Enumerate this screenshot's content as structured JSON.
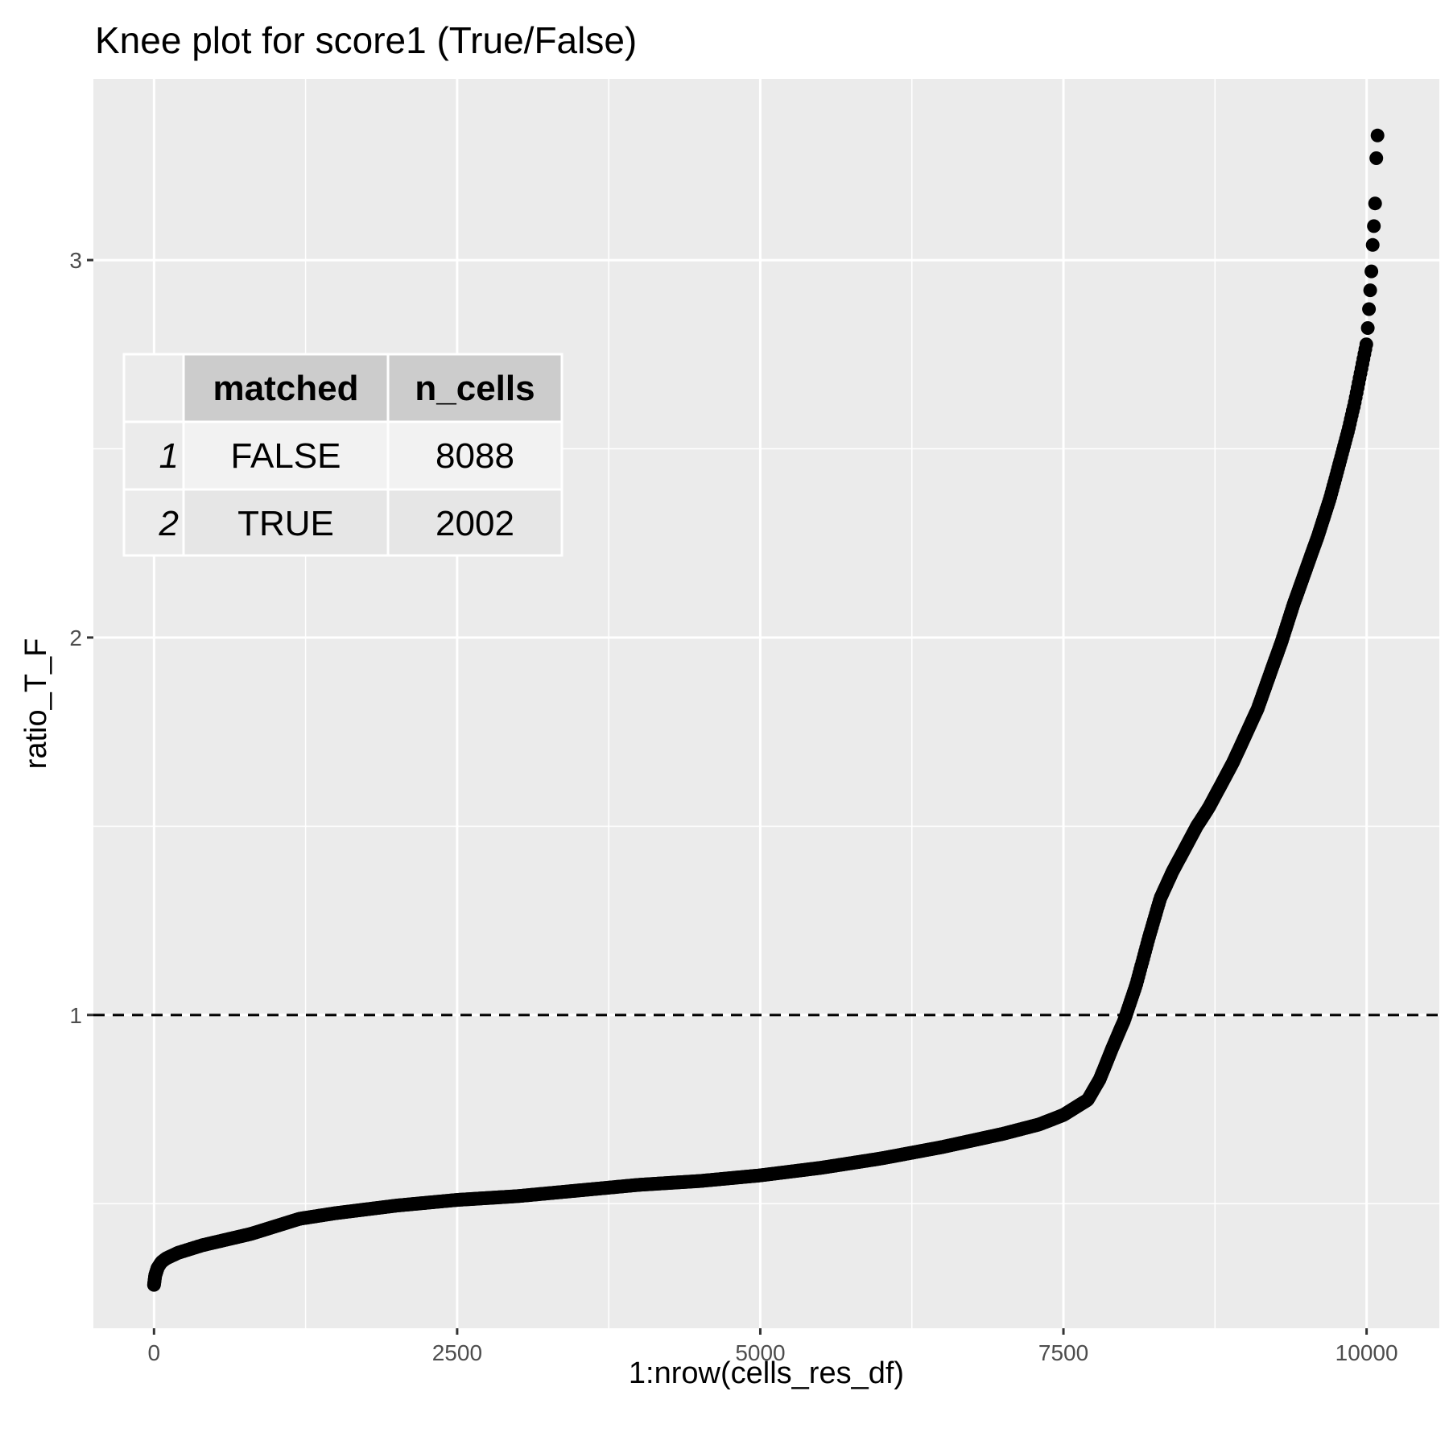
{
  "chart_data": {
    "type": "scatter",
    "title": "Knee plot for score1 (True/False)",
    "xlabel": "1:nrow(cells_res_df)",
    "ylabel": "ratio_T_F",
    "xlim": [
      -500,
      10600
    ],
    "ylim": [
      0.17,
      3.48
    ],
    "x_ticks": [
      0,
      2500,
      5000,
      7500,
      10000
    ],
    "x_tick_labels": [
      "0",
      "2500",
      "5000",
      "7500",
      "10000"
    ],
    "y_ticks": [
      1,
      2,
      3
    ],
    "y_tick_labels": [
      "1",
      "2",
      "3"
    ],
    "hline": {
      "y": 1,
      "style": "dashed"
    },
    "grid": true,
    "point_color": "#000000",
    "panel_background": "#ebebeb",
    "grid_color": "#ffffff",
    "curve": [
      [
        0,
        0.285
      ],
      [
        10,
        0.31
      ],
      [
        30,
        0.33
      ],
      [
        60,
        0.345
      ],
      [
        100,
        0.355
      ],
      [
        200,
        0.37
      ],
      [
        400,
        0.39
      ],
      [
        600,
        0.405
      ],
      [
        800,
        0.42
      ],
      [
        1000,
        0.44
      ],
      [
        1200,
        0.46
      ],
      [
        1500,
        0.475
      ],
      [
        2000,
        0.495
      ],
      [
        2500,
        0.51
      ],
      [
        3000,
        0.52
      ],
      [
        3500,
        0.535
      ],
      [
        4000,
        0.55
      ],
      [
        4500,
        0.56
      ],
      [
        5000,
        0.575
      ],
      [
        5500,
        0.595
      ],
      [
        6000,
        0.62
      ],
      [
        6500,
        0.65
      ],
      [
        7000,
        0.685
      ],
      [
        7300,
        0.71
      ],
      [
        7500,
        0.735
      ],
      [
        7700,
        0.775
      ],
      [
        7800,
        0.83
      ],
      [
        7900,
        0.91
      ],
      [
        8000,
        0.985
      ],
      [
        8100,
        1.08
      ],
      [
        8200,
        1.2
      ],
      [
        8300,
        1.31
      ],
      [
        8400,
        1.38
      ],
      [
        8500,
        1.44
      ],
      [
        8600,
        1.5
      ],
      [
        8700,
        1.55
      ],
      [
        8800,
        1.61
      ],
      [
        8900,
        1.67
      ],
      [
        9000,
        1.74
      ],
      [
        9100,
        1.81
      ],
      [
        9200,
        1.9
      ],
      [
        9300,
        1.99
      ],
      [
        9400,
        2.09
      ],
      [
        9500,
        2.18
      ],
      [
        9600,
        2.27
      ],
      [
        9700,
        2.37
      ],
      [
        9800,
        2.49
      ],
      [
        9850,
        2.55
      ],
      [
        9900,
        2.62
      ],
      [
        9950,
        2.7
      ],
      [
        10000,
        2.78
      ]
    ],
    "top_points": [
      [
        10010,
        2.82
      ],
      [
        10020,
        2.87
      ],
      [
        10030,
        2.92
      ],
      [
        10040,
        2.97
      ],
      [
        10050,
        3.04
      ],
      [
        10060,
        3.09
      ],
      [
        10070,
        3.15
      ],
      [
        10080,
        3.27
      ],
      [
        10090,
        3.33
      ]
    ],
    "table": {
      "headers": [
        "matched",
        "n_cells"
      ],
      "rows": [
        {
          "rowname": "1",
          "matched": "FALSE",
          "n_cells": "8088"
        },
        {
          "rowname": "2",
          "matched": "TRUE",
          "n_cells": "2002"
        }
      ]
    }
  }
}
